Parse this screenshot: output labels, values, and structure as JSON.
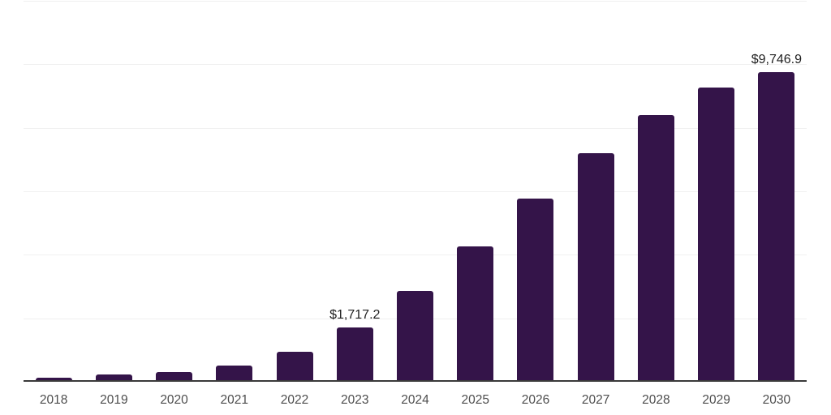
{
  "chart_data": {
    "type": "bar",
    "title": "",
    "xlabel": "",
    "ylabel": "",
    "categories": [
      "2018",
      "2019",
      "2020",
      "2021",
      "2022",
      "2023",
      "2024",
      "2025",
      "2026",
      "2027",
      "2028",
      "2029",
      "2030"
    ],
    "values": [
      125,
      225,
      300,
      510,
      945,
      1717.2,
      2860,
      4265,
      5770,
      7200,
      8400,
      9260,
      9746.9
    ],
    "point_labels": [
      "",
      "",
      "",
      "",
      "",
      "$1,717.2",
      "",
      "",
      "",
      "",
      "",
      "",
      "$9,746.9"
    ],
    "ylim": [
      0,
      12000
    ],
    "gridline_values": [
      2000,
      4000,
      6000,
      8000,
      10000,
      12000
    ],
    "grid": "horizontal",
    "legend_position": "none",
    "colors": {
      "bar": "#341449",
      "axis": "#3a3a3a",
      "gridline": "#f0f0f0",
      "tick_label": "#4d4d4d",
      "value_label": "#1f1f1f",
      "background": "#ffffff"
    }
  }
}
